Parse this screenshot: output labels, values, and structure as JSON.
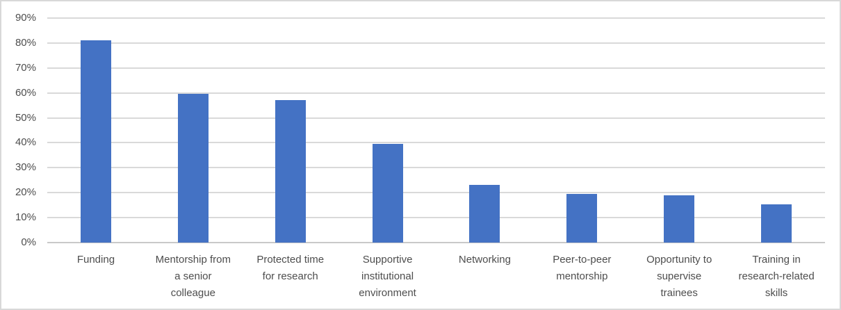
{
  "chart_data": {
    "type": "bar",
    "title": "",
    "xlabel": "",
    "ylabel": "",
    "categories": [
      "Funding",
      "Mentorship from a senior colleague",
      "Protected time for research",
      "Supportive institutional environment",
      "Networking",
      "Peer-to-peer mentorship",
      "Opportunity to supervise trainees",
      "Training in research-related skills"
    ],
    "category_lines": [
      [
        "Funding"
      ],
      [
        "Mentorship from",
        "a senior",
        "colleague"
      ],
      [
        "Protected time",
        "for research"
      ],
      [
        "Supportive",
        "institutional",
        "environment"
      ],
      [
        "Networking"
      ],
      [
        "Peer-to-peer",
        "mentorship"
      ],
      [
        "Opportunity to",
        "supervise",
        "trainees"
      ],
      [
        "Training in",
        "research-related",
        "skills"
      ]
    ],
    "values": [
      81,
      59.5,
      57,
      39.5,
      23,
      19.5,
      19,
      15.3
    ],
    "unit": "%",
    "y_ticks": [
      "0%",
      "10%",
      "20%",
      "30%",
      "40%",
      "50%",
      "60%",
      "70%",
      "80%",
      "90%"
    ],
    "ylim": [
      0,
      90
    ],
    "grid": true,
    "legend_position": "none",
    "colors": {
      "bar": "#4472C4",
      "gridline": "#d9d9d9",
      "axis_line": "#c9c9c9",
      "text": "#4d4d4d",
      "border": "#d8d8d8"
    }
  }
}
